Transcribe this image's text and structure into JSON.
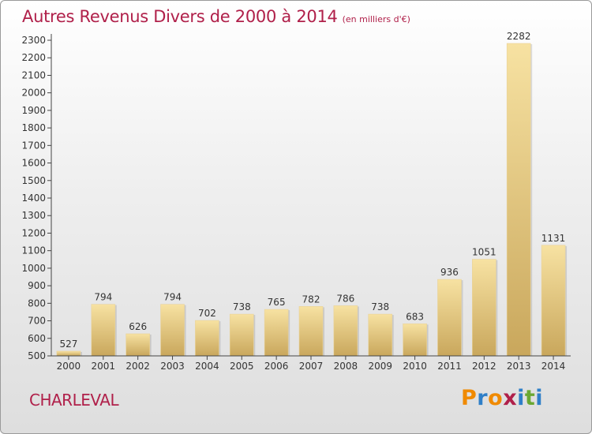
{
  "title": "Autres Revenus Divers de 2000 à 2014",
  "title_unit": "(en milliers d'€)",
  "place": "CHARLEVAL",
  "brand": {
    "letters": [
      "P",
      "r",
      "o",
      "x",
      "i",
      "t",
      "i"
    ],
    "colors": [
      "#f08a00",
      "#2f7fc8",
      "#f08a00",
      "#b0204a",
      "#2f7fc8",
      "#6aa832",
      "#2f7fc8"
    ]
  },
  "colors": {
    "accent": "#b0204a",
    "bar_light": "#f7e2a2",
    "bar_dark": "#c9a75c"
  },
  "chart_data": {
    "type": "bar",
    "title": "Autres Revenus Divers de 2000 à 2014",
    "subtitle": "(en milliers d'€)",
    "categories": [
      "2000",
      "2001",
      "2002",
      "2003",
      "2004",
      "2005",
      "2006",
      "2007",
      "2008",
      "2009",
      "2010",
      "2011",
      "2012",
      "2013",
      "2014"
    ],
    "values": [
      527,
      794,
      626,
      794,
      702,
      738,
      765,
      782,
      786,
      738,
      683,
      936,
      1051,
      2282,
      1131
    ],
    "ylim": [
      500,
      2300
    ],
    "yticks": [
      500,
      600,
      700,
      800,
      900,
      1000,
      1100,
      1200,
      1300,
      1400,
      1500,
      1600,
      1700,
      1800,
      1900,
      2000,
      2100,
      2200,
      2300
    ],
    "grid": false,
    "xlabel": "",
    "ylabel": ""
  }
}
